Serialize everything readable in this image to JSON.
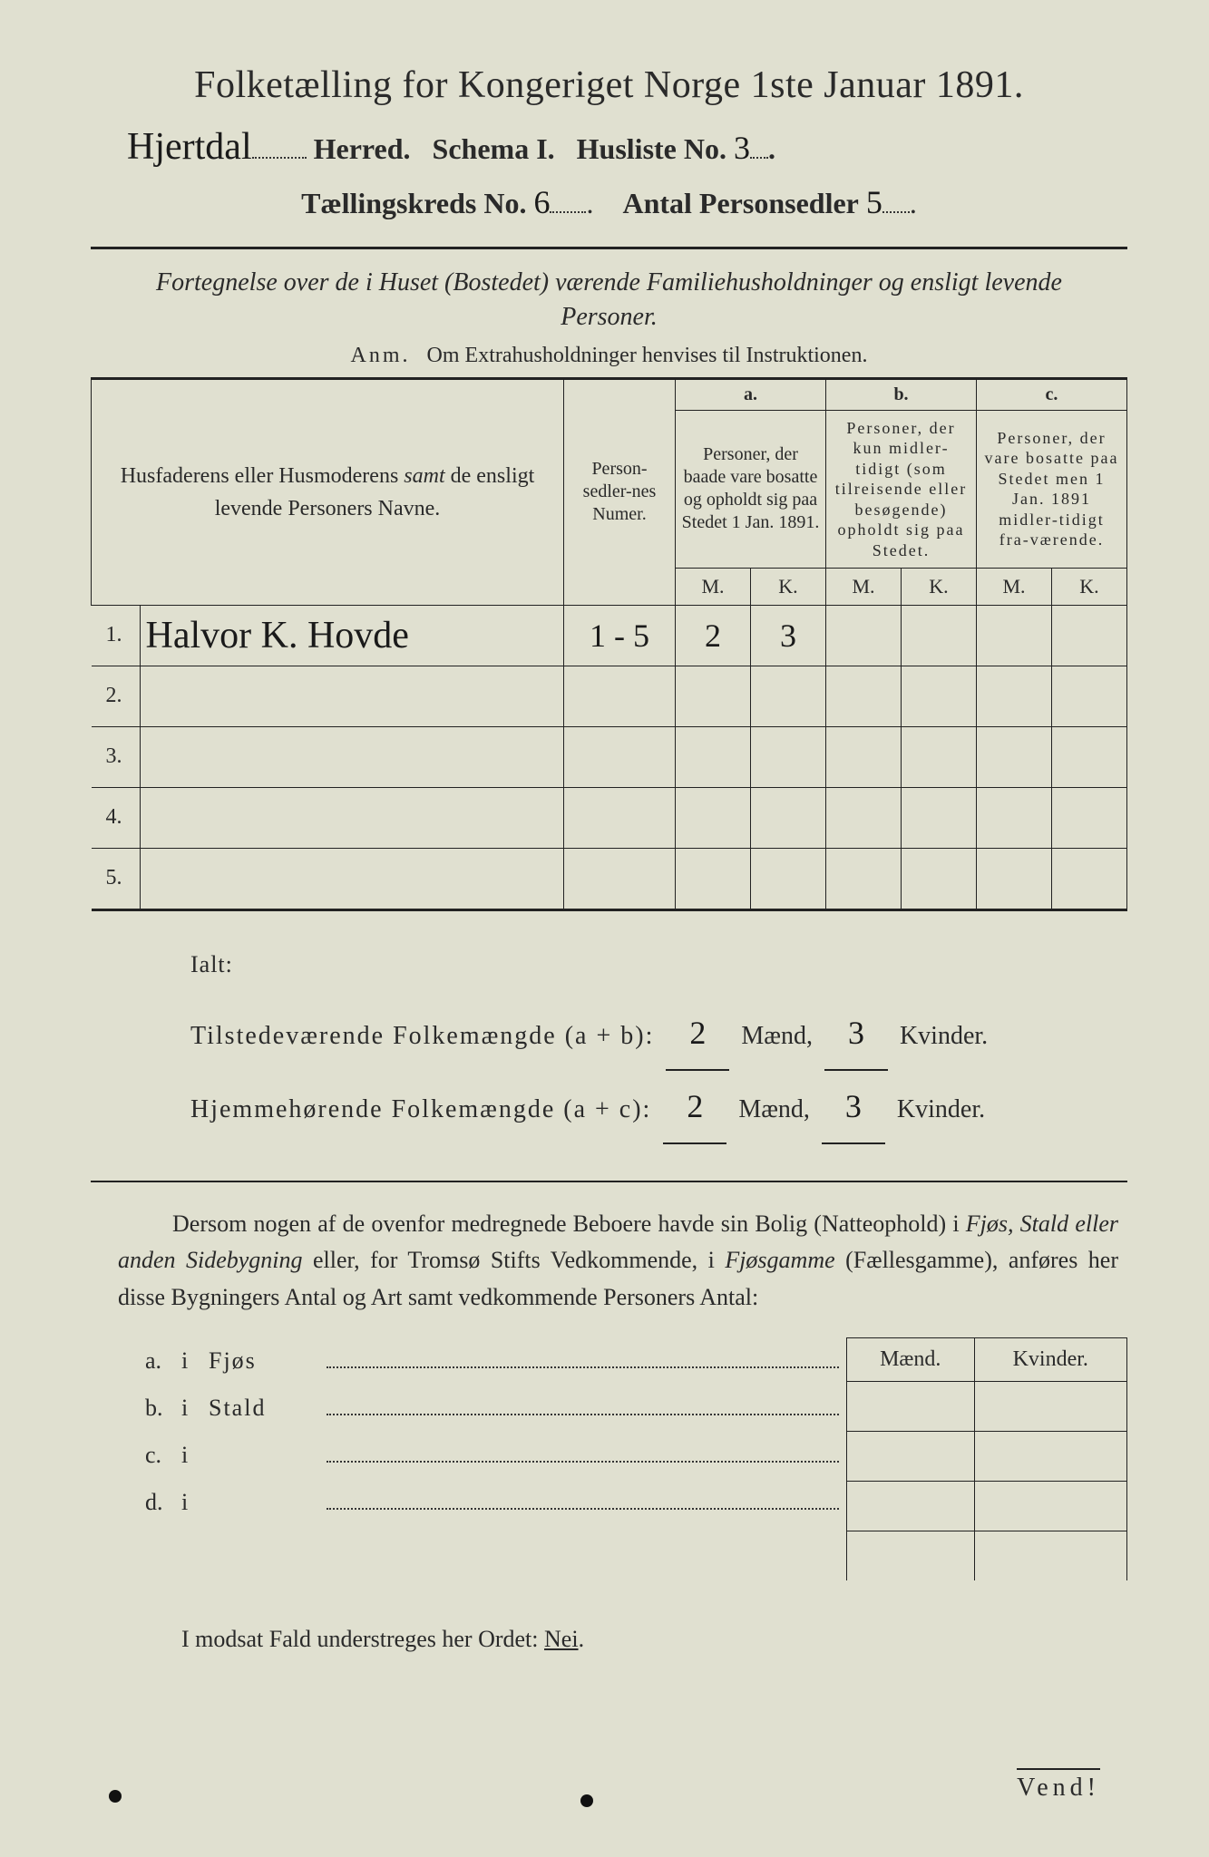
{
  "title": "Folketælling for Kongeriget Norge 1ste Januar 1891.",
  "line2": {
    "herred_hand": "Hjertdal",
    "herred_label": "Herred.",
    "schema_label": "Schema I.",
    "husliste_label": "Husliste No.",
    "husliste_no": "3"
  },
  "line3": {
    "kreds_label": "Tællingskreds No.",
    "kreds_no": "6",
    "antal_label": "Antal Personsedler",
    "antal_no": "5"
  },
  "subheading": "Fortegnelse over de i Huset (Bostedet) værende Familiehusholdninger og ensligt levende Personer.",
  "anm_label": "Anm.",
  "anm_text": "Om Extrahusholdninger henvises til Instruktionen.",
  "table": {
    "col_names": "Husfaderens eller Husmoderens <em>samt</em> de ensligt levende Personers Navne.",
    "col_num": "Person-sedler-nes Numer.",
    "col_a_label": "a.",
    "col_a": "Personer, der baade vare bosatte og opholdt sig paa Stedet 1 Jan. 1891.",
    "col_b_label": "b.",
    "col_b": "Personer, der kun midler-tidigt (som tilreisende eller besøgende) opholdt sig paa Stedet.",
    "col_c_label": "c.",
    "col_c": "Personer, der vare bosatte paa Stedet men 1 Jan. 1891 midler-tidigt fra-værende.",
    "M": "M.",
    "K": "K.",
    "rows": [
      {
        "n": "1.",
        "name": "Halvor K. Hovde",
        "num": "1 - 5",
        "aM": "2",
        "aK": "3",
        "bM": "",
        "bK": "",
        "cM": "",
        "cK": ""
      },
      {
        "n": "2.",
        "name": "",
        "num": "",
        "aM": "",
        "aK": "",
        "bM": "",
        "bK": "",
        "cM": "",
        "cK": ""
      },
      {
        "n": "3.",
        "name": "",
        "num": "",
        "aM": "",
        "aK": "",
        "bM": "",
        "bK": "",
        "cM": "",
        "cK": ""
      },
      {
        "n": "4.",
        "name": "",
        "num": "",
        "aM": "",
        "aK": "",
        "bM": "",
        "bK": "",
        "cM": "",
        "cK": ""
      },
      {
        "n": "5.",
        "name": "",
        "num": "",
        "aM": "",
        "aK": "",
        "bM": "",
        "bK": "",
        "cM": "",
        "cK": ""
      }
    ]
  },
  "totals": {
    "ialt": "Ialt:",
    "line1_label": "Tilstedeværende Folkemængde (a + b):",
    "line2_label": "Hjemmehørende Folkemængde (a + c):",
    "maend": "Mænd,",
    "kvinder": "Kvinder.",
    "ab_m": "2",
    "ab_k": "3",
    "ac_m": "2",
    "ac_k": "3"
  },
  "para": "Dersom nogen af de ovenfor medregnede Beboere havde sin Bolig (Natteophold) i <em>Fjøs, Stald eller anden Sidebygning</em> eller, for Tromsø Stifts Vedkommende, i <em>Fjøsgamme</em> (Fællesgamme), anføres her disse Bygningers Antal og Art samt vedkommende Personers Antal:",
  "bottom": {
    "maend": "Mænd.",
    "kvinder": "Kvinder.",
    "rows": [
      {
        "a": "a.",
        "i": "i",
        "w": "Fjøs"
      },
      {
        "a": "b.",
        "i": "i",
        "w": "Stald"
      },
      {
        "a": "c.",
        "i": "i",
        "w": ""
      },
      {
        "a": "d.",
        "i": "i",
        "w": ""
      }
    ]
  },
  "nei_line": "I modsat Fald understreges her Ordet:",
  "nei": "Nei",
  "vend": "Vend!",
  "colors": {
    "paper": "#e0e0d0",
    "ink": "#2a2a2a"
  }
}
